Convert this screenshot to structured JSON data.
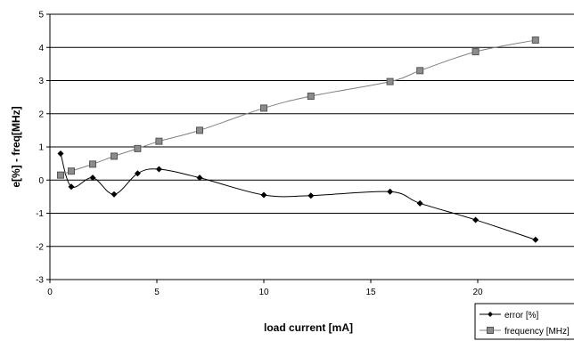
{
  "chart_data": {
    "type": "line",
    "title": "",
    "xlabel": "load current [mA]",
    "ylabel": "e[%] - freq[MHz]",
    "xlim": [
      0,
      25
    ],
    "ylim": [
      -3,
      5
    ],
    "x_ticks": [
      "0",
      "5",
      "10",
      "15",
      "20",
      "25"
    ],
    "y_ticks": [
      "-3",
      "-2",
      "-1",
      "0",
      "1",
      "2",
      "3",
      "4",
      "5"
    ],
    "grid": "horizontal",
    "legend_position": "bottom-right",
    "series": [
      {
        "name": "error [%]",
        "marker": "diamond",
        "color": "#000000",
        "x": [
          0.5,
          1.0,
          2.0,
          3.0,
          4.1,
          5.1,
          7.0,
          10.0,
          12.2,
          15.9,
          17.3,
          19.9,
          22.7
        ],
        "y": [
          0.8,
          -0.2,
          0.07,
          -0.43,
          0.2,
          0.33,
          0.07,
          -0.45,
          -0.47,
          -0.35,
          -0.7,
          -1.2,
          -1.8
        ]
      },
      {
        "name": "frequency [MHz]",
        "marker": "square",
        "color": "#808080",
        "x": [
          0.5,
          1.0,
          2.0,
          3.0,
          4.1,
          5.1,
          7.0,
          10.0,
          12.2,
          15.9,
          17.3,
          19.9,
          22.7
        ],
        "y": [
          0.15,
          0.27,
          0.48,
          0.72,
          0.95,
          1.17,
          1.5,
          2.17,
          2.53,
          2.97,
          3.3,
          3.87,
          4.22
        ]
      }
    ]
  }
}
